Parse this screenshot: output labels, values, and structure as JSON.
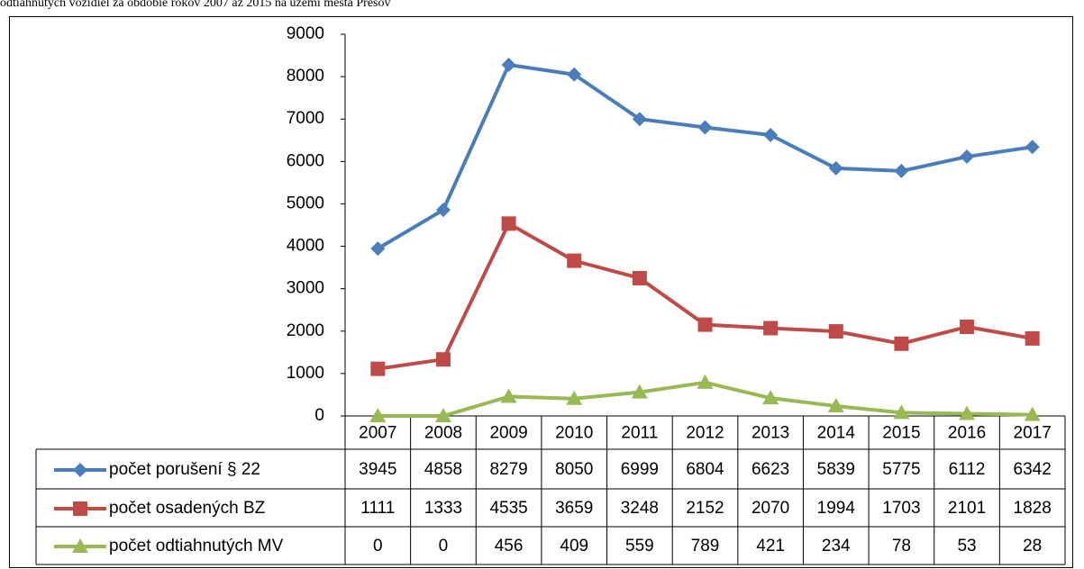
{
  "caption": "odtiahnutých vozidiel za obdobie rokov 2007 až 2015 na území mesta Prešov",
  "chart_data": {
    "type": "line",
    "categories": [
      "2007",
      "2008",
      "2009",
      "2010",
      "2011",
      "2012",
      "2013",
      "2014",
      "2015",
      "2016",
      "2017"
    ],
    "series": [
      {
        "name": "počet porušení § 22",
        "color": "#4a7ebb",
        "marker": "diamond",
        "values": [
          3945,
          4858,
          8279,
          8050,
          6999,
          6804,
          6623,
          5839,
          5775,
          6112,
          6342
        ]
      },
      {
        "name": "počet osadených BZ",
        "color": "#be4b48",
        "marker": "square",
        "values": [
          1111,
          1333,
          4535,
          3659,
          3248,
          2152,
          2070,
          1994,
          1703,
          2101,
          1828
        ]
      },
      {
        "name": "počet odtiahnutých MV",
        "color": "#98b954",
        "marker": "triangle",
        "values": [
          0,
          0,
          456,
          409,
          559,
          789,
          421,
          234,
          78,
          53,
          28
        ]
      }
    ],
    "ylim": [
      0,
      9000
    ],
    "yticks": [
      0,
      1000,
      2000,
      3000,
      4000,
      5000,
      6000,
      7000,
      8000,
      9000
    ],
    "grid": false
  }
}
